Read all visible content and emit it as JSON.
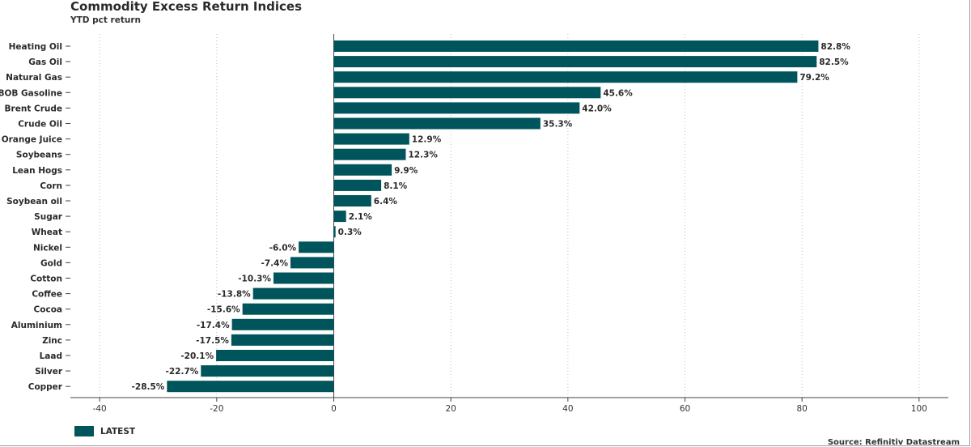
{
  "title": "Commodity Excess Return Indices",
  "subtitle": "YTD pct return",
  "source": "Source: Refinitiv Datastream",
  "colors": {
    "bar": "#00555c",
    "grid": "#bdbdbd",
    "axis": "#444444"
  },
  "legend": {
    "label": "LATEST",
    "placement": "bottom-left"
  },
  "chart_data": {
    "type": "bar",
    "orientation": "horizontal",
    "categories": [
      "Heating Oil",
      "Gas Oil",
      "Natural Gas",
      "RBOB Gasoline",
      "Brent Crude",
      "Crude Oil",
      "Orange Juice",
      "Soybeans",
      "Lean Hogs",
      "Corn",
      "Soybean oil",
      "Sugar",
      "Wheat",
      "Nickel",
      "Gold",
      "Cotton",
      "Coffee",
      "Cocoa",
      "Aluminium",
      "Zinc",
      "Laad",
      "Silver",
      "Copper"
    ],
    "series": [
      {
        "name": "LATEST",
        "values": [
          82.8,
          82.5,
          79.2,
          45.6,
          42.0,
          35.3,
          12.9,
          12.3,
          9.9,
          8.1,
          6.4,
          2.1,
          0.3,
          -6.0,
          -7.4,
          -10.3,
          -13.8,
          -15.6,
          -17.4,
          -17.5,
          -20.1,
          -22.7,
          -28.5
        ]
      }
    ],
    "data_labels": [
      "82.8%",
      "82.5%",
      "79.2%",
      "45.6%",
      "42.0%",
      "35.3%",
      "12.9%",
      "12.3%",
      "9.9%",
      "8.1%",
      "6.4%",
      "2.1%",
      "0.3%",
      "-6.0%",
      "-7.4%",
      "-10.3%",
      "-13.8%",
      "-15.6%",
      "-17.4%",
      "-17.5%",
      "-20.1%",
      "-22.7%",
      "-28.5%"
    ],
    "xticks": [
      -40,
      -20,
      0,
      20,
      40,
      60,
      80,
      100
    ],
    "xlim": [
      -45,
      105
    ],
    "grid": true,
    "xlabel": "",
    "ylabel": ""
  }
}
